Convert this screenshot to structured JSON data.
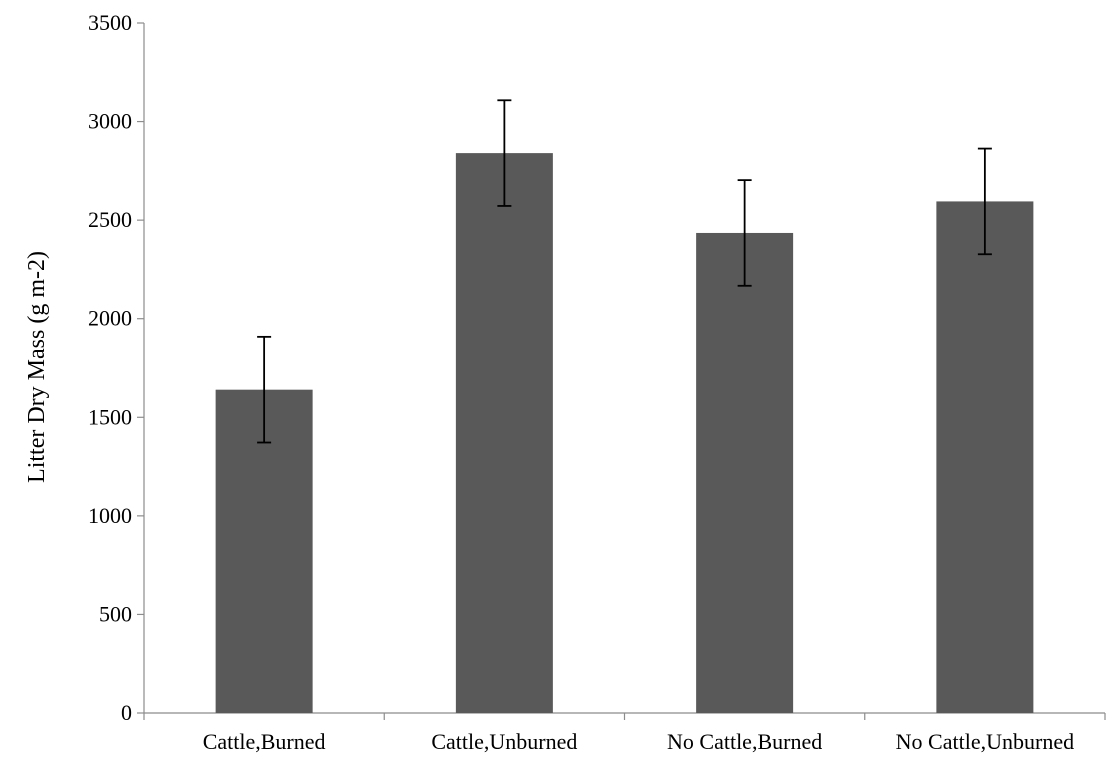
{
  "chart_data": {
    "type": "bar",
    "title": "",
    "xlabel": "",
    "ylabel": "Litter Dry Mass (g m-2)",
    "categories": [
      "Cattle,Burned",
      "Cattle,Unburned",
      "No Cattle,Burned",
      "No Cattle,Unburned"
    ],
    "values": [
      1640,
      2840,
      2435,
      2595
    ],
    "error_low": [
      1372,
      2572,
      2167,
      2327
    ],
    "error_high": [
      1908,
      3108,
      2703,
      2863
    ],
    "ylim": [
      0,
      3500
    ],
    "yticks": [
      0,
      500,
      1000,
      1500,
      2000,
      2500,
      3000,
      3500
    ],
    "ytick_labels": [
      "0",
      "500",
      "1000",
      "1500",
      "2000",
      "2500",
      "3000",
      "3500"
    ],
    "grid": false,
    "legend": "none",
    "bar_color": "#595959"
  }
}
